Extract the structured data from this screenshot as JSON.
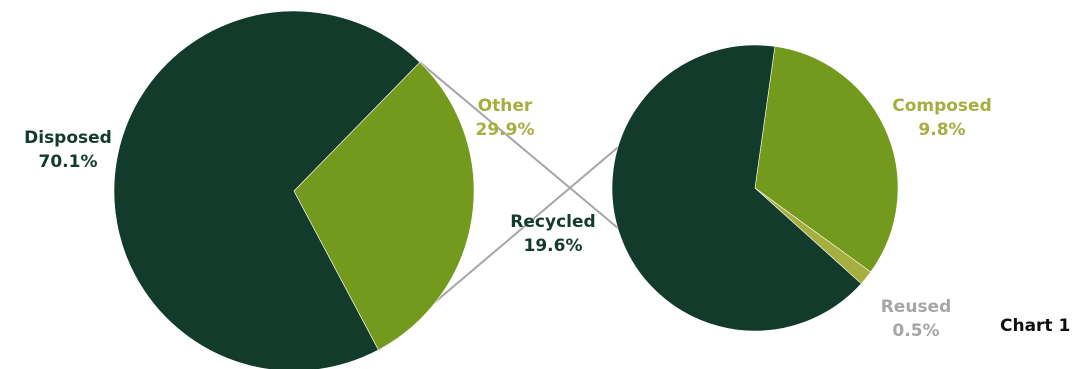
{
  "caption": "Chart 1",
  "colors": {
    "dark_green": "#133b2c",
    "olive": "#73991d",
    "olive_light": "#a5ae3e",
    "gray_text": "#a6a6a6",
    "connector": "#a6a6a6"
  },
  "chart_data": {
    "type": "pie",
    "title": "",
    "pies": [
      {
        "slices": [
          {
            "label": "Disposed",
            "value_text": "70.1%",
            "value": 70.1,
            "color": "#133b2c",
            "label_color": "#133b2c"
          },
          {
            "label": "Other",
            "value_text": "29.9%",
            "value": 29.9,
            "color": "#73991d",
            "label_color": "#a5ae3e"
          }
        ]
      },
      {
        "slices": [
          {
            "label": "Composed",
            "value_text": "9.8%",
            "value": 9.8,
            "color": "#73991d",
            "label_color": "#a5ae3e"
          },
          {
            "label": "Reused",
            "value_text": "0.5%",
            "value": 0.5,
            "color": "#a5ae3e",
            "label_color": "#a6a6a6"
          },
          {
            "label": "Recycled",
            "value_text": "19.6%",
            "value": 19.6,
            "color": "#133b2c",
            "label_color": "#133b2c"
          }
        ]
      }
    ]
  }
}
